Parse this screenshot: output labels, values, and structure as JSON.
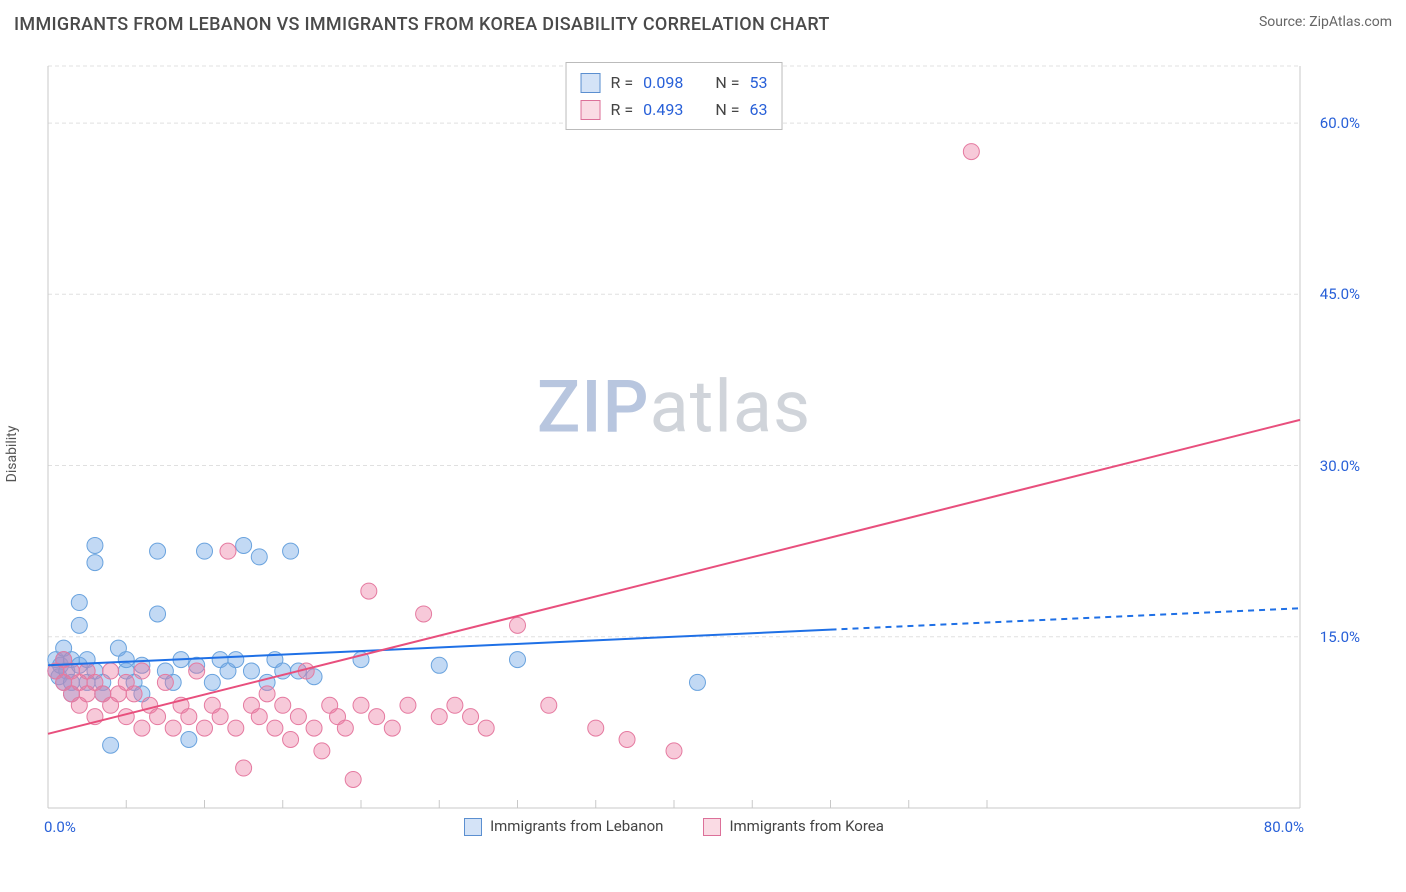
{
  "title": "IMMIGRANTS FROM LEBANON VS IMMIGRANTS FROM KOREA DISABILITY CORRELATION CHART",
  "source": "Source: ZipAtlas.com",
  "ylabel": "Disability",
  "watermark": {
    "zip": "ZIP",
    "rest": "atlas"
  },
  "chart": {
    "type": "scatter",
    "xlim": [
      0,
      80
    ],
    "ylim": [
      0,
      65
    ],
    "xtick_labels": {
      "min": "0.0%",
      "max": "80.0%"
    },
    "ytick_values": [
      15,
      30,
      45,
      60
    ],
    "ytick_labels": [
      "15.0%",
      "30.0%",
      "45.0%",
      "60.0%"
    ],
    "xtick_marks": [
      5,
      10,
      15,
      20,
      25,
      30,
      35,
      40,
      45,
      50,
      55,
      60
    ],
    "background_color": "#ffffff",
    "grid_color": "#e0e0e0",
    "grid_dash": "4 3",
    "axis_color": "#c8c8c8",
    "tick_font_color": "#2860d8",
    "label_fontsize": 14,
    "tick_fontsize": 15
  },
  "series": [
    {
      "name": "Immigrants from Lebanon",
      "color_fill": "rgba(120,170,230,0.45)",
      "color_stroke": "#6aa3de",
      "swatch_fill": "#d4e3f7",
      "swatch_stroke": "#5b8fd0",
      "marker_r": 8,
      "trend_line": {
        "x1": 0,
        "y1": 12.5,
        "x2": 80,
        "y2": 17.5,
        "color": "#1f70e6",
        "width": 2,
        "solid_until_x": 50
      },
      "points": [
        [
          0.5,
          12
        ],
        [
          0.5,
          13
        ],
        [
          0.7,
          11.5
        ],
        [
          0.8,
          12.5
        ],
        [
          1,
          13
        ],
        [
          1,
          11
        ],
        [
          1,
          14
        ],
        [
          1.2,
          12
        ],
        [
          1.5,
          13
        ],
        [
          1.5,
          11
        ],
        [
          1.5,
          10
        ],
        [
          2,
          12.5
        ],
        [
          2,
          16
        ],
        [
          2,
          18
        ],
        [
          2.5,
          13
        ],
        [
          2.5,
          11
        ],
        [
          3,
          12
        ],
        [
          3,
          23
        ],
        [
          3,
          21.5
        ],
        [
          3.5,
          11
        ],
        [
          3.5,
          10
        ],
        [
          4,
          5.5
        ],
        [
          4.5,
          14
        ],
        [
          5,
          12
        ],
        [
          5,
          13
        ],
        [
          5.5,
          11
        ],
        [
          6,
          12.5
        ],
        [
          6,
          10
        ],
        [
          7,
          22.5
        ],
        [
          7,
          17
        ],
        [
          7.5,
          12
        ],
        [
          8,
          11
        ],
        [
          8.5,
          13
        ],
        [
          9,
          6
        ],
        [
          9.5,
          12.5
        ],
        [
          10,
          22.5
        ],
        [
          10.5,
          11
        ],
        [
          11,
          13
        ],
        [
          11.5,
          12
        ],
        [
          12,
          13
        ],
        [
          12.5,
          23
        ],
        [
          13,
          12
        ],
        [
          13.5,
          22
        ],
        [
          14,
          11
        ],
        [
          14.5,
          13
        ],
        [
          15,
          12
        ],
        [
          15.5,
          22.5
        ],
        [
          16,
          12
        ],
        [
          17,
          11.5
        ],
        [
          20,
          13
        ],
        [
          25,
          12.5
        ],
        [
          30,
          13
        ],
        [
          41.5,
          11
        ]
      ]
    },
    {
      "name": "Immigrants from Korea",
      "color_fill": "rgba(235,120,160,0.40)",
      "color_stroke": "#e57aa0",
      "swatch_fill": "#fadbe4",
      "swatch_stroke": "#dc7099",
      "marker_r": 8,
      "trend_line": {
        "x1": 0,
        "y1": 6.5,
        "x2": 80,
        "y2": 34,
        "color": "#e84f7d",
        "width": 2,
        "solid_until_x": 80
      },
      "points": [
        [
          0.5,
          12
        ],
        [
          1,
          11
        ],
        [
          1,
          13
        ],
        [
          1.5,
          10
        ],
        [
          1.5,
          12
        ],
        [
          2,
          9
        ],
        [
          2,
          11
        ],
        [
          2.5,
          10
        ],
        [
          2.5,
          12
        ],
        [
          3,
          8
        ],
        [
          3,
          11
        ],
        [
          3.5,
          10
        ],
        [
          4,
          9
        ],
        [
          4,
          12
        ],
        [
          4.5,
          10
        ],
        [
          5,
          8
        ],
        [
          5,
          11
        ],
        [
          5.5,
          10
        ],
        [
          6,
          7
        ],
        [
          6,
          12
        ],
        [
          6.5,
          9
        ],
        [
          7,
          8
        ],
        [
          7.5,
          11
        ],
        [
          8,
          7
        ],
        [
          8.5,
          9
        ],
        [
          9,
          8
        ],
        [
          9.5,
          12
        ],
        [
          10,
          7
        ],
        [
          10.5,
          9
        ],
        [
          11,
          8
        ],
        [
          11.5,
          22.5
        ],
        [
          12,
          7
        ],
        [
          12.5,
          3.5
        ],
        [
          13,
          9
        ],
        [
          13.5,
          8
        ],
        [
          14,
          10
        ],
        [
          14.5,
          7
        ],
        [
          15,
          9
        ],
        [
          15.5,
          6
        ],
        [
          16,
          8
        ],
        [
          16.5,
          12
        ],
        [
          17,
          7
        ],
        [
          17.5,
          5
        ],
        [
          18,
          9
        ],
        [
          18.5,
          8
        ],
        [
          19,
          7
        ],
        [
          19.5,
          2.5
        ],
        [
          20,
          9
        ],
        [
          20.5,
          19
        ],
        [
          21,
          8
        ],
        [
          22,
          7
        ],
        [
          23,
          9
        ],
        [
          24,
          17
        ],
        [
          25,
          8
        ],
        [
          26,
          9
        ],
        [
          27,
          8
        ],
        [
          28,
          7
        ],
        [
          30,
          16
        ],
        [
          32,
          9
        ],
        [
          35,
          7
        ],
        [
          37,
          6
        ],
        [
          40,
          5
        ],
        [
          59,
          57.5
        ]
      ]
    }
  ],
  "corr_legend": {
    "rows": [
      {
        "swatch_fill": "#d4e3f7",
        "swatch_stroke": "#5b8fd0",
        "r_label": "R =",
        "r_val": "0.098",
        "n_label": "N =",
        "n_val": "53"
      },
      {
        "swatch_fill": "#fadbe4",
        "swatch_stroke": "#dc7099",
        "r_label": "R =",
        "r_val": "0.493",
        "n_label": "N =",
        "n_val": "63"
      }
    ]
  },
  "bottom_legend": [
    {
      "swatch_fill": "#d4e3f7",
      "swatch_stroke": "#5b8fd0",
      "label": "Immigrants from Lebanon"
    },
    {
      "swatch_fill": "#fadbe4",
      "swatch_stroke": "#dc7099",
      "label": "Immigrants from Korea"
    }
  ]
}
